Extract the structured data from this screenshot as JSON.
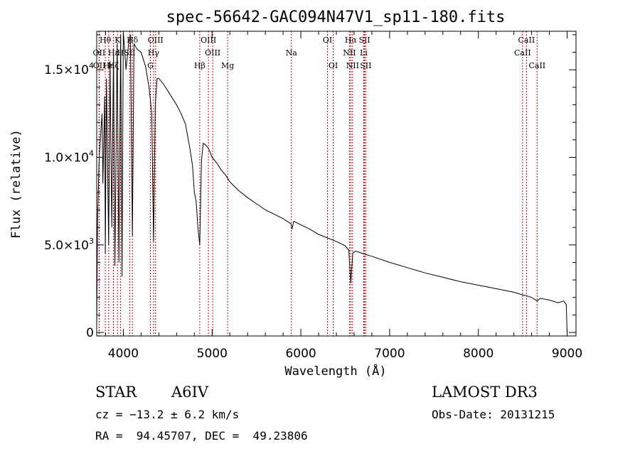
{
  "chart_data": {
    "type": "line",
    "title": "spec-56642-GAC094N47V1_sp11-180.fits",
    "xlabel": "Wavelength (Å)",
    "ylabel": "Flux (relative)",
    "xlim": [
      3700,
      9100
    ],
    "ylim": [
      -200,
      17200
    ],
    "x_ticks": [
      4000,
      5000,
      6000,
      7000,
      8000,
      9000
    ],
    "x_tick_labels": [
      "4000",
      "5000",
      "6000",
      "7000",
      "8000",
      "9000"
    ],
    "y_ticks": [
      0,
      5000,
      10000,
      15000
    ],
    "y_tick_labels": [
      {
        "mant": "0",
        "exp": ""
      },
      {
        "mant": "5.0×10",
        "exp": "3"
      },
      {
        "mant": "1.0×10",
        "exp": "4"
      },
      {
        "mant": "1.5×10",
        "exp": "4"
      }
    ],
    "series": [
      {
        "name": "spectrum",
        "x": [
          3700,
          3710,
          3725,
          3740,
          3760,
          3770,
          3790,
          3797,
          3810,
          3835,
          3850,
          3870,
          3889,
          3905,
          3930,
          3950,
          3970,
          3985,
          4000,
          4030,
          4060,
          4080,
          4102,
          4120,
          4150,
          4200,
          4250,
          4290,
          4320,
          4340,
          4360,
          4380,
          4400,
          4450,
          4500,
          4550,
          4600,
          4650,
          4700,
          4750,
          4780,
          4800,
          4820,
          4840,
          4861,
          4880,
          4900,
          4930,
          4960,
          5000,
          5050,
          5100,
          5150,
          5200,
          5300,
          5400,
          5500,
          5600,
          5700,
          5800,
          5890,
          5900,
          5920,
          6000,
          6100,
          6200,
          6300,
          6400,
          6500,
          6540,
          6563,
          6585,
          6620,
          6700,
          6800,
          7000,
          7200,
          7400,
          7600,
          7800,
          8000,
          8200,
          8400,
          8498,
          8542,
          8600,
          8662,
          8700,
          8800,
          8900,
          8960,
          8990,
          9000
        ],
        "y": [
          200,
          6500,
          9500,
          11000,
          12500,
          8500,
          13500,
          4500,
          14500,
          5000,
          15500,
          6000,
          16000,
          3800,
          16500,
          4000,
          17000,
          3200,
          17500,
          15000,
          16500,
          17000,
          5500,
          16500,
          16200,
          16000,
          15200,
          14000,
          12500,
          5200,
          13000,
          14500,
          14500,
          14200,
          13800,
          13400,
          13000,
          12500,
          11900,
          10500,
          9500,
          8000,
          7500,
          6000,
          5000,
          9800,
          10800,
          10700,
          10500,
          10000,
          9700,
          9300,
          9000,
          8600,
          8100,
          7700,
          7350,
          7000,
          6750,
          6500,
          6200,
          5900,
          6350,
          6150,
          5900,
          5600,
          5400,
          5200,
          4950,
          4700,
          2800,
          4550,
          4650,
          4500,
          4350,
          4000,
          3700,
          3400,
          3150,
          2900,
          2700,
          2500,
          2300,
          2150,
          2100,
          2000,
          1800,
          1950,
          1850,
          1700,
          1800,
          1600,
          0
        ]
      }
    ],
    "lines": [
      {
        "label": "Hθ",
        "x": 3797,
        "row": 0
      },
      {
        "label": "K",
        "x": 3934,
        "row": 0
      },
      {
        "label": "Hδ",
        "x": 4102,
        "row": 0
      },
      {
        "label": "OIII",
        "x": 4363,
        "row": 0
      },
      {
        "label": "OIII",
        "x": 4959,
        "row": 0
      },
      {
        "label": "OI",
        "x": 6300,
        "row": 0
      },
      {
        "label": "Hα",
        "x": 6563,
        "row": 0
      },
      {
        "label": "SII",
        "x": 6717,
        "row": 0
      },
      {
        "label": "CaII",
        "x": 8542,
        "row": 0
      },
      {
        "label": "OII",
        "x": 3727,
        "row": 1
      },
      {
        "label": "Hε",
        "x": 3889,
        "row": 1
      },
      {
        "label": "H",
        "x": 3969,
        "row": 1
      },
      {
        "label": "SII",
        "x": 4072,
        "row": 1
      },
      {
        "label": "Hγ",
        "x": 4340,
        "row": 1
      },
      {
        "label": "OIII",
        "x": 5007,
        "row": 1
      },
      {
        "label": "Na",
        "x": 5893,
        "row": 1
      },
      {
        "label": "NII",
        "x": 6548,
        "row": 1
      },
      {
        "label": "Li",
        "x": 6708,
        "row": 1
      },
      {
        "label": "CaII",
        "x": 8498,
        "row": 1
      },
      {
        "label": "OII",
        "x": 3729,
        "row": 2
      },
      {
        "label": "Hη",
        "x": 3835,
        "row": 2
      },
      {
        "label": "Hζ",
        "x": 3889,
        "row": 2
      },
      {
        "label": "G",
        "x": 4305,
        "row": 2
      },
      {
        "label": "Hβ",
        "x": 4861,
        "row": 2
      },
      {
        "label": "Mg",
        "x": 5175,
        "row": 2
      },
      {
        "label": "OI",
        "x": 6364,
        "row": 2
      },
      {
        "label": "NII",
        "x": 6583,
        "row": 2
      },
      {
        "label": "SII",
        "x": 6731,
        "row": 2
      },
      {
        "label": "CaII",
        "x": 8662,
        "row": 2
      }
    ]
  },
  "info": {
    "class_label": "STAR",
    "subclass": "A6IV",
    "cz": "cz = −13.2 ± 6.2 km/s",
    "radec": "RA =  94.45707, DEC =  49.23806",
    "survey": "LAMOST DR3",
    "obs_date": "Obs-Date: 20131215"
  }
}
